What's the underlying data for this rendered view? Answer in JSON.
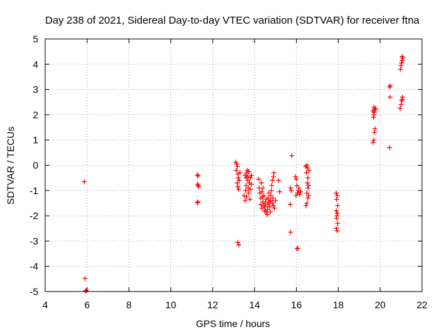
{
  "chart_data": {
    "type": "scatter",
    "title": "Day 238 of 2021, Sidereal Day-to-day VTEC variation (SDTVAR) for receiver ftna",
    "xlabel": "GPS time / hours",
    "ylabel": "SDTVAR / TECUs",
    "xlim": [
      4,
      22
    ],
    "ylim": [
      -5,
      5
    ],
    "xticks": [
      "4",
      "6",
      "8",
      "10",
      "12",
      "14",
      "16",
      "18",
      "20",
      "22"
    ],
    "yticks": [
      "5",
      "4",
      "3",
      "2",
      "1",
      "0",
      "-1",
      "-2",
      "-3",
      "-4",
      "-5"
    ],
    "grid": true,
    "marker": "+",
    "colors": {
      "points": "#ff0000",
      "axes": "#000000",
      "grid": "#a0a0a0"
    },
    "series": [
      {
        "name": "SDTVAR",
        "points": [
          [
            5.87,
            -0.65
          ],
          [
            5.9,
            -4.48
          ],
          [
            5.92,
            -4.98
          ],
          [
            5.97,
            -4.96
          ],
          [
            11.27,
            -0.38
          ],
          [
            11.3,
            -0.42
          ],
          [
            11.28,
            -0.75
          ],
          [
            11.33,
            -0.85
          ],
          [
            11.31,
            -0.8
          ],
          [
            11.3,
            -1.45
          ],
          [
            11.27,
            -1.48
          ],
          [
            13.1,
            0.12
          ],
          [
            13.15,
            0.05
          ],
          [
            13.18,
            -0.05
          ],
          [
            13.12,
            -0.2
          ],
          [
            13.2,
            -0.35
          ],
          [
            13.22,
            -0.5
          ],
          [
            13.17,
            -0.7
          ],
          [
            13.2,
            -0.85
          ],
          [
            13.24,
            -0.95
          ],
          [
            13.27,
            -0.6
          ],
          [
            13.3,
            -0.3
          ],
          [
            13.2,
            -3.05
          ],
          [
            13.25,
            -3.15
          ],
          [
            13.5,
            -1.2
          ],
          [
            13.55,
            -1.4
          ],
          [
            13.58,
            -1.0
          ],
          [
            13.55,
            -0.4
          ],
          [
            13.6,
            -0.5
          ],
          [
            13.62,
            -0.3
          ],
          [
            13.65,
            -0.2
          ],
          [
            13.68,
            -0.6
          ],
          [
            13.7,
            -0.9
          ],
          [
            13.72,
            -1.1
          ],
          [
            13.75,
            -0.7
          ],
          [
            13.6,
            -0.8
          ],
          [
            13.68,
            -0.45
          ],
          [
            13.72,
            -0.25
          ],
          [
            13.8,
            -0.5
          ],
          [
            13.62,
            -1.25
          ],
          [
            13.78,
            -1.35
          ],
          [
            13.8,
            -0.95
          ],
          [
            13.85,
            -0.75
          ],
          [
            13.85,
            -0.4
          ],
          [
            14.2,
            -0.55
          ],
          [
            14.22,
            -0.9
          ],
          [
            14.25,
            -1.1
          ],
          [
            14.3,
            -1.3
          ],
          [
            14.3,
            -1.55
          ],
          [
            14.35,
            -1.7
          ],
          [
            14.32,
            -0.7
          ],
          [
            14.35,
            -1.05
          ],
          [
            14.38,
            -1.25
          ],
          [
            14.4,
            -1.45
          ],
          [
            14.45,
            -1.6
          ],
          [
            14.48,
            -1.8
          ],
          [
            14.5,
            -1.65
          ],
          [
            14.52,
            -1.5
          ],
          [
            14.55,
            -1.35
          ],
          [
            14.55,
            -1.85
          ],
          [
            14.6,
            -1.95
          ],
          [
            14.62,
            -1.75
          ],
          [
            14.65,
            -1.55
          ],
          [
            14.65,
            -1.3
          ],
          [
            14.68,
            -1.1
          ],
          [
            14.7,
            -1.45
          ],
          [
            14.72,
            -1.65
          ],
          [
            14.75,
            -1.85
          ],
          [
            14.75,
            -1.4
          ],
          [
            14.78,
            -1.2
          ],
          [
            14.8,
            -1.0
          ],
          [
            14.82,
            -0.8
          ],
          [
            14.85,
            -0.6
          ],
          [
            14.85,
            -1.5
          ],
          [
            14.88,
            -1.3
          ],
          [
            14.9,
            -0.45
          ],
          [
            14.92,
            -0.3
          ],
          [
            14.9,
            -1.6
          ],
          [
            14.95,
            -1.7
          ],
          [
            15.0,
            -1.4
          ],
          [
            14.4,
            -0.9
          ],
          [
            14.45,
            -1.2
          ],
          [
            15.15,
            -0.6
          ],
          [
            15.2,
            -1.05
          ],
          [
            15.78,
            0.38
          ],
          [
            15.72,
            -0.9
          ],
          [
            15.75,
            -1.0
          ],
          [
            15.7,
            -1.55
          ],
          [
            15.72,
            -2.65
          ],
          [
            15.95,
            -0.45
          ],
          [
            16.0,
            -0.55
          ],
          [
            16.02,
            -0.8
          ],
          [
            15.98,
            -1.2
          ],
          [
            16.05,
            -1.1
          ],
          [
            16.1,
            -1.0
          ],
          [
            16.12,
            -0.9
          ],
          [
            16.15,
            -1.15
          ],
          [
            16.2,
            -1.05
          ],
          [
            16.02,
            -3.3
          ],
          [
            16.07,
            -3.3
          ],
          [
            16.45,
            -0.05
          ],
          [
            16.5,
            0.0
          ],
          [
            16.52,
            -0.1
          ],
          [
            16.48,
            -0.3
          ],
          [
            16.55,
            -0.5
          ],
          [
            16.52,
            -0.7
          ],
          [
            16.55,
            -0.9
          ],
          [
            16.5,
            -1.1
          ],
          [
            16.55,
            -1.3
          ],
          [
            16.5,
            -1.5
          ],
          [
            16.45,
            -1.6
          ],
          [
            16.6,
            -0.2
          ],
          [
            16.58,
            -0.8
          ],
          [
            16.58,
            -1.2
          ],
          [
            17.9,
            -1.1
          ],
          [
            17.95,
            -1.2
          ],
          [
            17.92,
            -1.35
          ],
          [
            17.97,
            -1.6
          ],
          [
            17.9,
            -1.8
          ],
          [
            17.95,
            -1.9
          ],
          [
            17.92,
            -2.1
          ],
          [
            17.97,
            -2.3
          ],
          [
            17.9,
            -2.5
          ],
          [
            17.95,
            -2.6
          ],
          [
            17.93,
            -2.0
          ],
          [
            19.65,
            0.9
          ],
          [
            19.7,
            1.0
          ],
          [
            19.72,
            1.3
          ],
          [
            19.75,
            1.45
          ],
          [
            19.68,
            1.9
          ],
          [
            19.7,
            2.0
          ],
          [
            19.72,
            2.1
          ],
          [
            19.75,
            2.2
          ],
          [
            19.7,
            2.3
          ],
          [
            19.78,
            2.25
          ],
          [
            19.65,
            2.15
          ],
          [
            20.45,
            3.1
          ],
          [
            20.48,
            3.15
          ],
          [
            20.47,
            2.7
          ],
          [
            20.45,
            0.7
          ],
          [
            20.95,
            2.25
          ],
          [
            21.0,
            2.4
          ],
          [
            21.02,
            2.55
          ],
          [
            21.05,
            2.6
          ],
          [
            21.07,
            2.7
          ],
          [
            20.97,
            3.8
          ],
          [
            21.0,
            3.95
          ],
          [
            21.02,
            4.05
          ],
          [
            21.05,
            4.15
          ],
          [
            21.08,
            4.25
          ],
          [
            21.05,
            4.3
          ]
        ]
      }
    ]
  }
}
